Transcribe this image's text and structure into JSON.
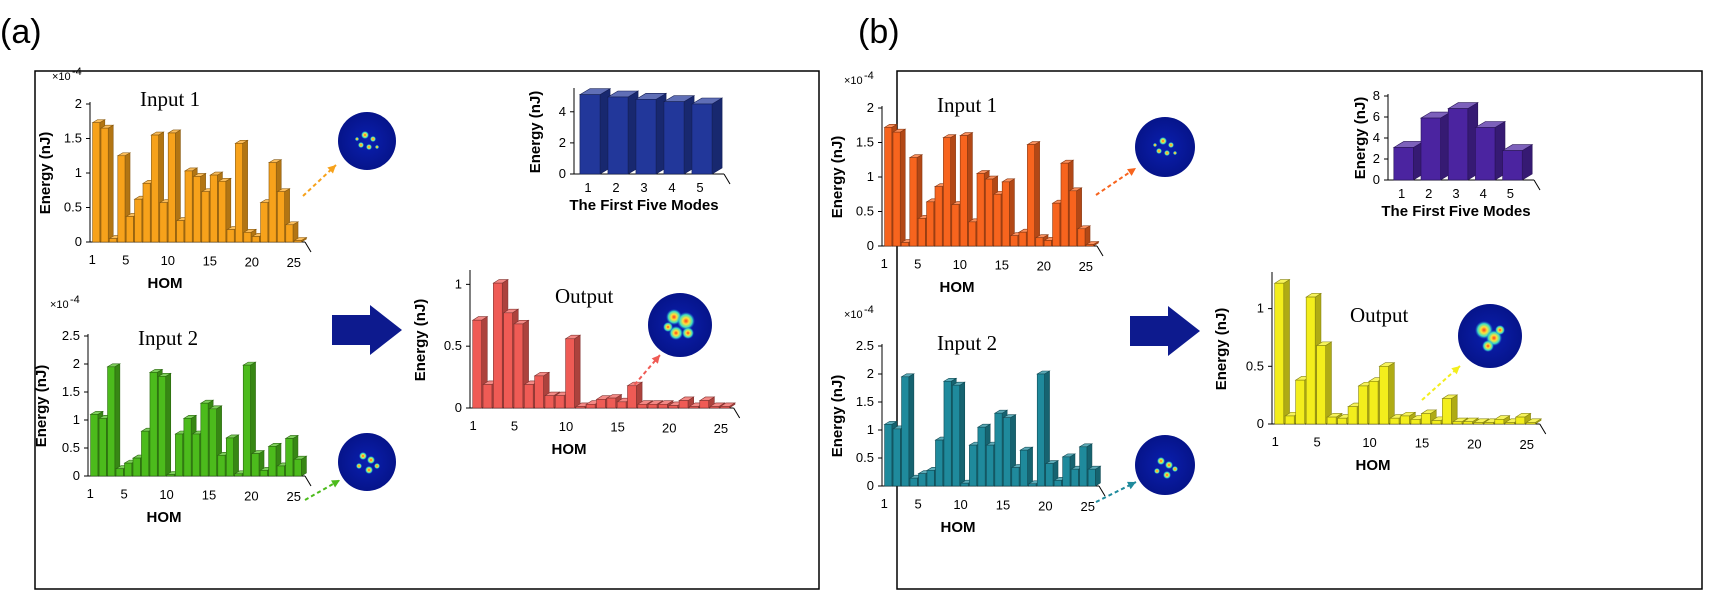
{
  "panels": [
    "(a)",
    "(b)"
  ],
  "colors": {
    "a_input1": "#f7a21b",
    "a_input2": "#4cbb1c",
    "a_output": "#ef5b55",
    "a_modes": "#22379a",
    "b_input1": "#f7641e",
    "b_input2": "#1f8a9c",
    "b_output": "#f3ee1c",
    "b_modes": "#4b24a0",
    "arrow": "#0d1a8e"
  },
  "chart_data": [
    {
      "panel": "(a)",
      "type": "bar",
      "title": "Input 1",
      "ylabel": "Energy (nJ)",
      "xlabel": "HOM",
      "exponent": "×10",
      "exponent_power": "-4",
      "ylim": [
        0,
        2
      ],
      "yticks": [
        "0",
        "0.5",
        "1",
        "1.5",
        "2"
      ],
      "xticks": [
        "1",
        "5",
        "10",
        "15",
        "20",
        "25"
      ],
      "values": [
        1.73,
        1.65,
        0.05,
        1.25,
        0.37,
        0.62,
        0.85,
        1.55,
        0.57,
        1.58,
        0.31,
        1.03,
        0.95,
        0.73,
        0.97,
        0.88,
        0.18,
        1.43,
        0.14,
        0.08,
        0.57,
        1.15,
        0.73,
        0.25,
        0.0
      ],
      "swatch": "a_input1"
    },
    {
      "panel": "(a)",
      "type": "bar",
      "title": "Input 2",
      "ylabel": "Energy (nJ)",
      "xlabel": "HOM",
      "exponent": "×10",
      "exponent_power": "-4",
      "ylim": [
        0,
        2.5
      ],
      "yticks": [
        "0",
        "0.5",
        "1",
        "1.5",
        "2",
        "2.5"
      ],
      "xticks": [
        "1",
        "5",
        "10",
        "15",
        "20",
        "25"
      ],
      "values": [
        1.1,
        1.03,
        1.95,
        0.13,
        0.23,
        0.32,
        0.8,
        1.85,
        1.78,
        0.02,
        0.75,
        1.03,
        0.75,
        1.3,
        1.2,
        0.37,
        0.68,
        0.04,
        1.98,
        0.4,
        0.1,
        0.53,
        0.18,
        0.67,
        0.3
      ],
      "swatch": "a_input2"
    },
    {
      "panel": "(a)",
      "type": "bar",
      "title": "Output",
      "ylabel": "Energy (nJ)",
      "xlabel": "HOM",
      "ylim": [
        0,
        1.1
      ],
      "yticks": [
        "0",
        "0.5",
        "1"
      ],
      "xticks": [
        "1",
        "5",
        "10",
        "15",
        "20",
        "25"
      ],
      "values": [
        0.71,
        0.19,
        1.01,
        0.77,
        0.68,
        0.19,
        0.26,
        0.1,
        0.1,
        0.56,
        0.01,
        0.03,
        0.07,
        0.08,
        0.05,
        0.18,
        0.03,
        0.03,
        0.03,
        0.02,
        0.06,
        0.01,
        0.06,
        0.01,
        0.0
      ],
      "swatch": "a_output"
    },
    {
      "panel": "(a)",
      "type": "bar",
      "title": "",
      "ylabel": "Energy (nJ)",
      "xlabel": "The First Five Modes",
      "ylim": [
        0,
        5.4
      ],
      "yticks": [
        "0",
        "2",
        "4"
      ],
      "xticks": [
        "1",
        "2",
        "3",
        "4",
        "5"
      ],
      "values": [
        5.1,
        4.95,
        4.8,
        4.65,
        4.5
      ],
      "swatch": "a_modes"
    },
    {
      "panel": "(b)",
      "type": "bar",
      "title": "Input 1",
      "ylabel": "Energy (nJ)",
      "xlabel": "HOM",
      "exponent": "×10",
      "exponent_power": "-4",
      "ylim": [
        0,
        2
      ],
      "yticks": [
        "0",
        "0.5",
        "1",
        "1.5",
        "2"
      ],
      "xticks": [
        "1",
        "5",
        "10",
        "15",
        "20",
        "25"
      ],
      "values": [
        1.72,
        1.65,
        0.05,
        1.28,
        0.4,
        0.64,
        0.86,
        1.57,
        0.6,
        1.6,
        0.35,
        1.05,
        0.97,
        0.75,
        0.93,
        0.15,
        0.2,
        1.47,
        0.12,
        0.08,
        0.62,
        1.2,
        0.8,
        0.25,
        0.0
      ],
      "swatch": "b_input1"
    },
    {
      "panel": "(b)",
      "type": "bar",
      "title": "Input 2",
      "ylabel": "Energy (nJ)",
      "xlabel": "HOM",
      "exponent": "×10",
      "exponent_power": "-4",
      "ylim": [
        0,
        2.5
      ],
      "yticks": [
        "0",
        "0.5",
        "1",
        "1.5",
        "2",
        "2.5"
      ],
      "xticks": [
        "1",
        "5",
        "10",
        "15",
        "20",
        "25"
      ],
      "values": [
        1.1,
        1.02,
        1.95,
        0.14,
        0.22,
        0.28,
        0.82,
        1.87,
        1.8,
        0.05,
        0.73,
        1.05,
        0.73,
        1.3,
        1.22,
        0.33,
        0.64,
        0.04,
        2.0,
        0.4,
        0.1,
        0.52,
        0.3,
        0.7,
        0.3
      ],
      "swatch": "b_input2"
    },
    {
      "panel": "(b)",
      "type": "bar",
      "title": "Output",
      "ylabel": "Energy (nJ)",
      "xlabel": "HOM",
      "ylim": [
        0,
        1.3
      ],
      "yticks": [
        "0",
        "0.5",
        "1"
      ],
      "xticks": [
        "1",
        "5",
        "10",
        "15",
        "20",
        "25"
      ],
      "values": [
        1.22,
        0.07,
        0.38,
        1.1,
        0.68,
        0.06,
        0.05,
        0.15,
        0.33,
        0.37,
        0.5,
        0.05,
        0.07,
        0.04,
        0.09,
        0.03,
        0.22,
        0.02,
        0.02,
        0.01,
        0.01,
        0.04,
        0.01,
        0.06,
        0.0
      ],
      "swatch": "b_output"
    },
    {
      "panel": "(b)",
      "type": "bar",
      "title": "",
      "ylabel": "Energy (nJ)",
      "xlabel": "The First Five Modes",
      "ylim": [
        0,
        8
      ],
      "yticks": [
        "0",
        "2",
        "4",
        "6",
        "8"
      ],
      "xticks": [
        "1",
        "2",
        "3",
        "4",
        "5"
      ],
      "values": [
        3.1,
        5.9,
        6.8,
        5.0,
        2.8
      ],
      "swatch": "b_modes"
    }
  ]
}
